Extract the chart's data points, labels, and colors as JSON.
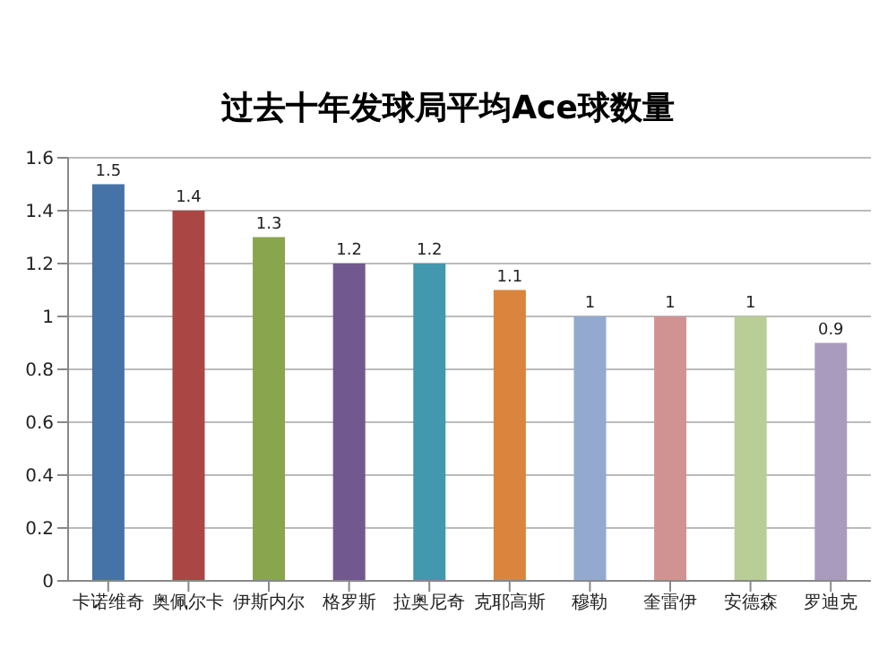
{
  "chart_data": {
    "type": "bar",
    "title": "过去十年发球局平均Ace球数量",
    "categories": [
      "卡诺维奇",
      "奥佩尔卡",
      "伊斯内尔",
      "格罗斯",
      "拉奥尼奇",
      "克耶高斯",
      "穆勒",
      "奎雷伊",
      "安德森",
      "罗迪克"
    ],
    "values": [
      1.5,
      1.4,
      1.3,
      1.2,
      1.2,
      1.1,
      1,
      1,
      1,
      0.9
    ],
    "colors": [
      "#4572a7",
      "#aa4643",
      "#89a54e",
      "#71588f",
      "#4198af",
      "#db843d",
      "#93a9cf",
      "#d19392",
      "#b9cd96",
      "#a99bbd"
    ],
    "ylim": [
      0,
      1.6
    ],
    "yticks": [
      0,
      0.2,
      0.4,
      0.6,
      0.8,
      1,
      1.2,
      1.4,
      1.6
    ],
    "grid": "y",
    "data_labels": true
  }
}
